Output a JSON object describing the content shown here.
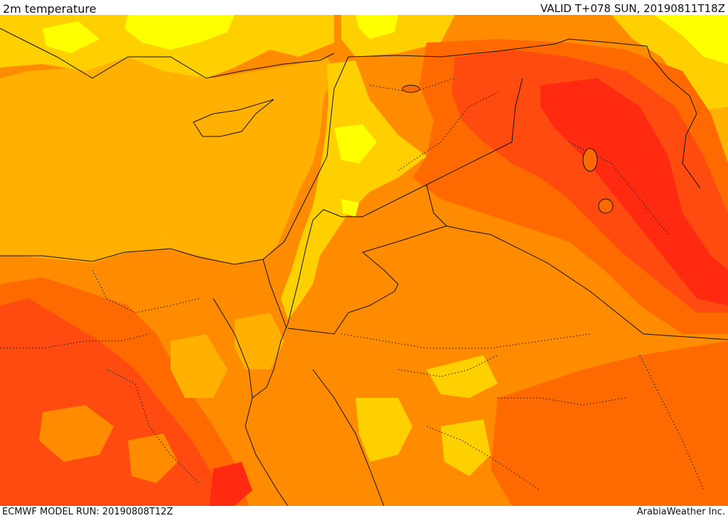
{
  "header": {
    "title": "2m temperature",
    "valid_time": "VALID T+078 SUN, 20190811T18Z"
  },
  "footer": {
    "model_run": "ECMWF MODEL RUN: 20190808T12Z",
    "credit": "ArabiaWeather Inc."
  },
  "map": {
    "colors": {
      "yellow": "#ffff00",
      "light_orange": "#ffd000",
      "amber": "#ffb000",
      "orange": "#ff8c00",
      "dark_orange": "#ff6a00",
      "red_orange": "#ff4a10",
      "red": "#ff2a10"
    },
    "border_color": "#111111"
  }
}
